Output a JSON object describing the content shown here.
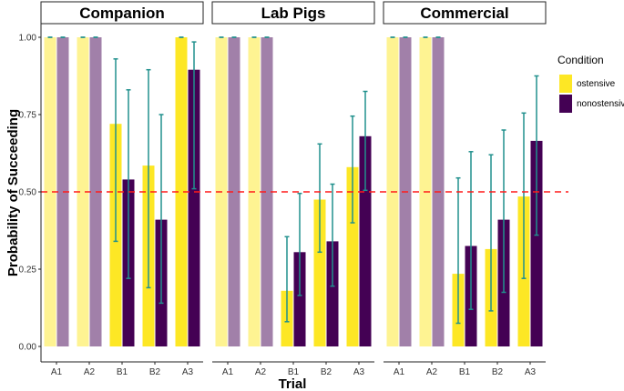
{
  "chart_data": {
    "type": "bar",
    "xlabel": "Trial",
    "ylabel": "Probability of Succeeding",
    "ylim": [
      0,
      1.05
    ],
    "yticks": [
      "0.00",
      "0.25",
      "0.50",
      "0.75",
      "1.00"
    ],
    "reference_line": {
      "y": 0.5,
      "color": "#ff1a1a",
      "style": "dashed"
    },
    "legend": {
      "title": "Condition",
      "placement": "right",
      "entries": [
        {
          "name": "ostensive",
          "color": "#fde725"
        },
        {
          "name": "nonostensive",
          "color": "#440154"
        }
      ]
    },
    "faded_categories": [
      "A1",
      "A2"
    ],
    "panels": [
      {
        "title": "Companion",
        "categories": [
          "A1",
          "A2",
          "B1",
          "B2",
          "A3"
        ],
        "series": [
          {
            "name": "ostensive",
            "values": [
              1.0,
              1.0,
              0.72,
              0.585,
              1.0
            ],
            "err_low": [
              1.0,
              1.0,
              0.34,
              0.19,
              1.0
            ],
            "err_high": [
              1.0,
              1.0,
              0.93,
              0.895,
              1.0
            ]
          },
          {
            "name": "nonostensive",
            "values": [
              1.0,
              1.0,
              0.54,
              0.41,
              0.895
            ],
            "err_low": [
              1.0,
              1.0,
              0.22,
              0.14,
              0.51
            ],
            "err_high": [
              1.0,
              1.0,
              0.83,
              0.75,
              0.985
            ]
          }
        ]
      },
      {
        "title": "Lab Pigs",
        "categories": [
          "A1",
          "A2",
          "B1",
          "B2",
          "A3"
        ],
        "series": [
          {
            "name": "ostensive",
            "values": [
              1.0,
              1.0,
              0.18,
              0.475,
              0.58
            ],
            "err_low": [
              1.0,
              1.0,
              0.08,
              0.305,
              0.4
            ],
            "err_high": [
              1.0,
              1.0,
              0.355,
              0.655,
              0.745
            ]
          },
          {
            "name": "nonostensive",
            "values": [
              1.0,
              1.0,
              0.305,
              0.34,
              0.68
            ],
            "err_low": [
              1.0,
              1.0,
              0.165,
              0.195,
              0.505
            ],
            "err_high": [
              1.0,
              1.0,
              0.495,
              0.525,
              0.825
            ]
          }
        ]
      },
      {
        "title": "Commercial",
        "categories": [
          "A1",
          "A2",
          "B1",
          "B2",
          "A3"
        ],
        "series": [
          {
            "name": "ostensive",
            "values": [
              1.0,
              1.0,
              0.235,
              0.315,
              0.485
            ],
            "err_low": [
              1.0,
              1.0,
              0.075,
              0.115,
              0.22
            ],
            "err_high": [
              1.0,
              1.0,
              0.545,
              0.62,
              0.755
            ]
          },
          {
            "name": "nonostensive",
            "values": [
              1.0,
              1.0,
              0.325,
              0.41,
              0.665
            ],
            "err_low": [
              1.0,
              1.0,
              0.12,
              0.175,
              0.36
            ],
            "err_high": [
              1.0,
              1.0,
              0.63,
              0.7,
              0.875
            ]
          }
        ]
      }
    ],
    "errorbar_color": "#21908d",
    "grid": false
  }
}
